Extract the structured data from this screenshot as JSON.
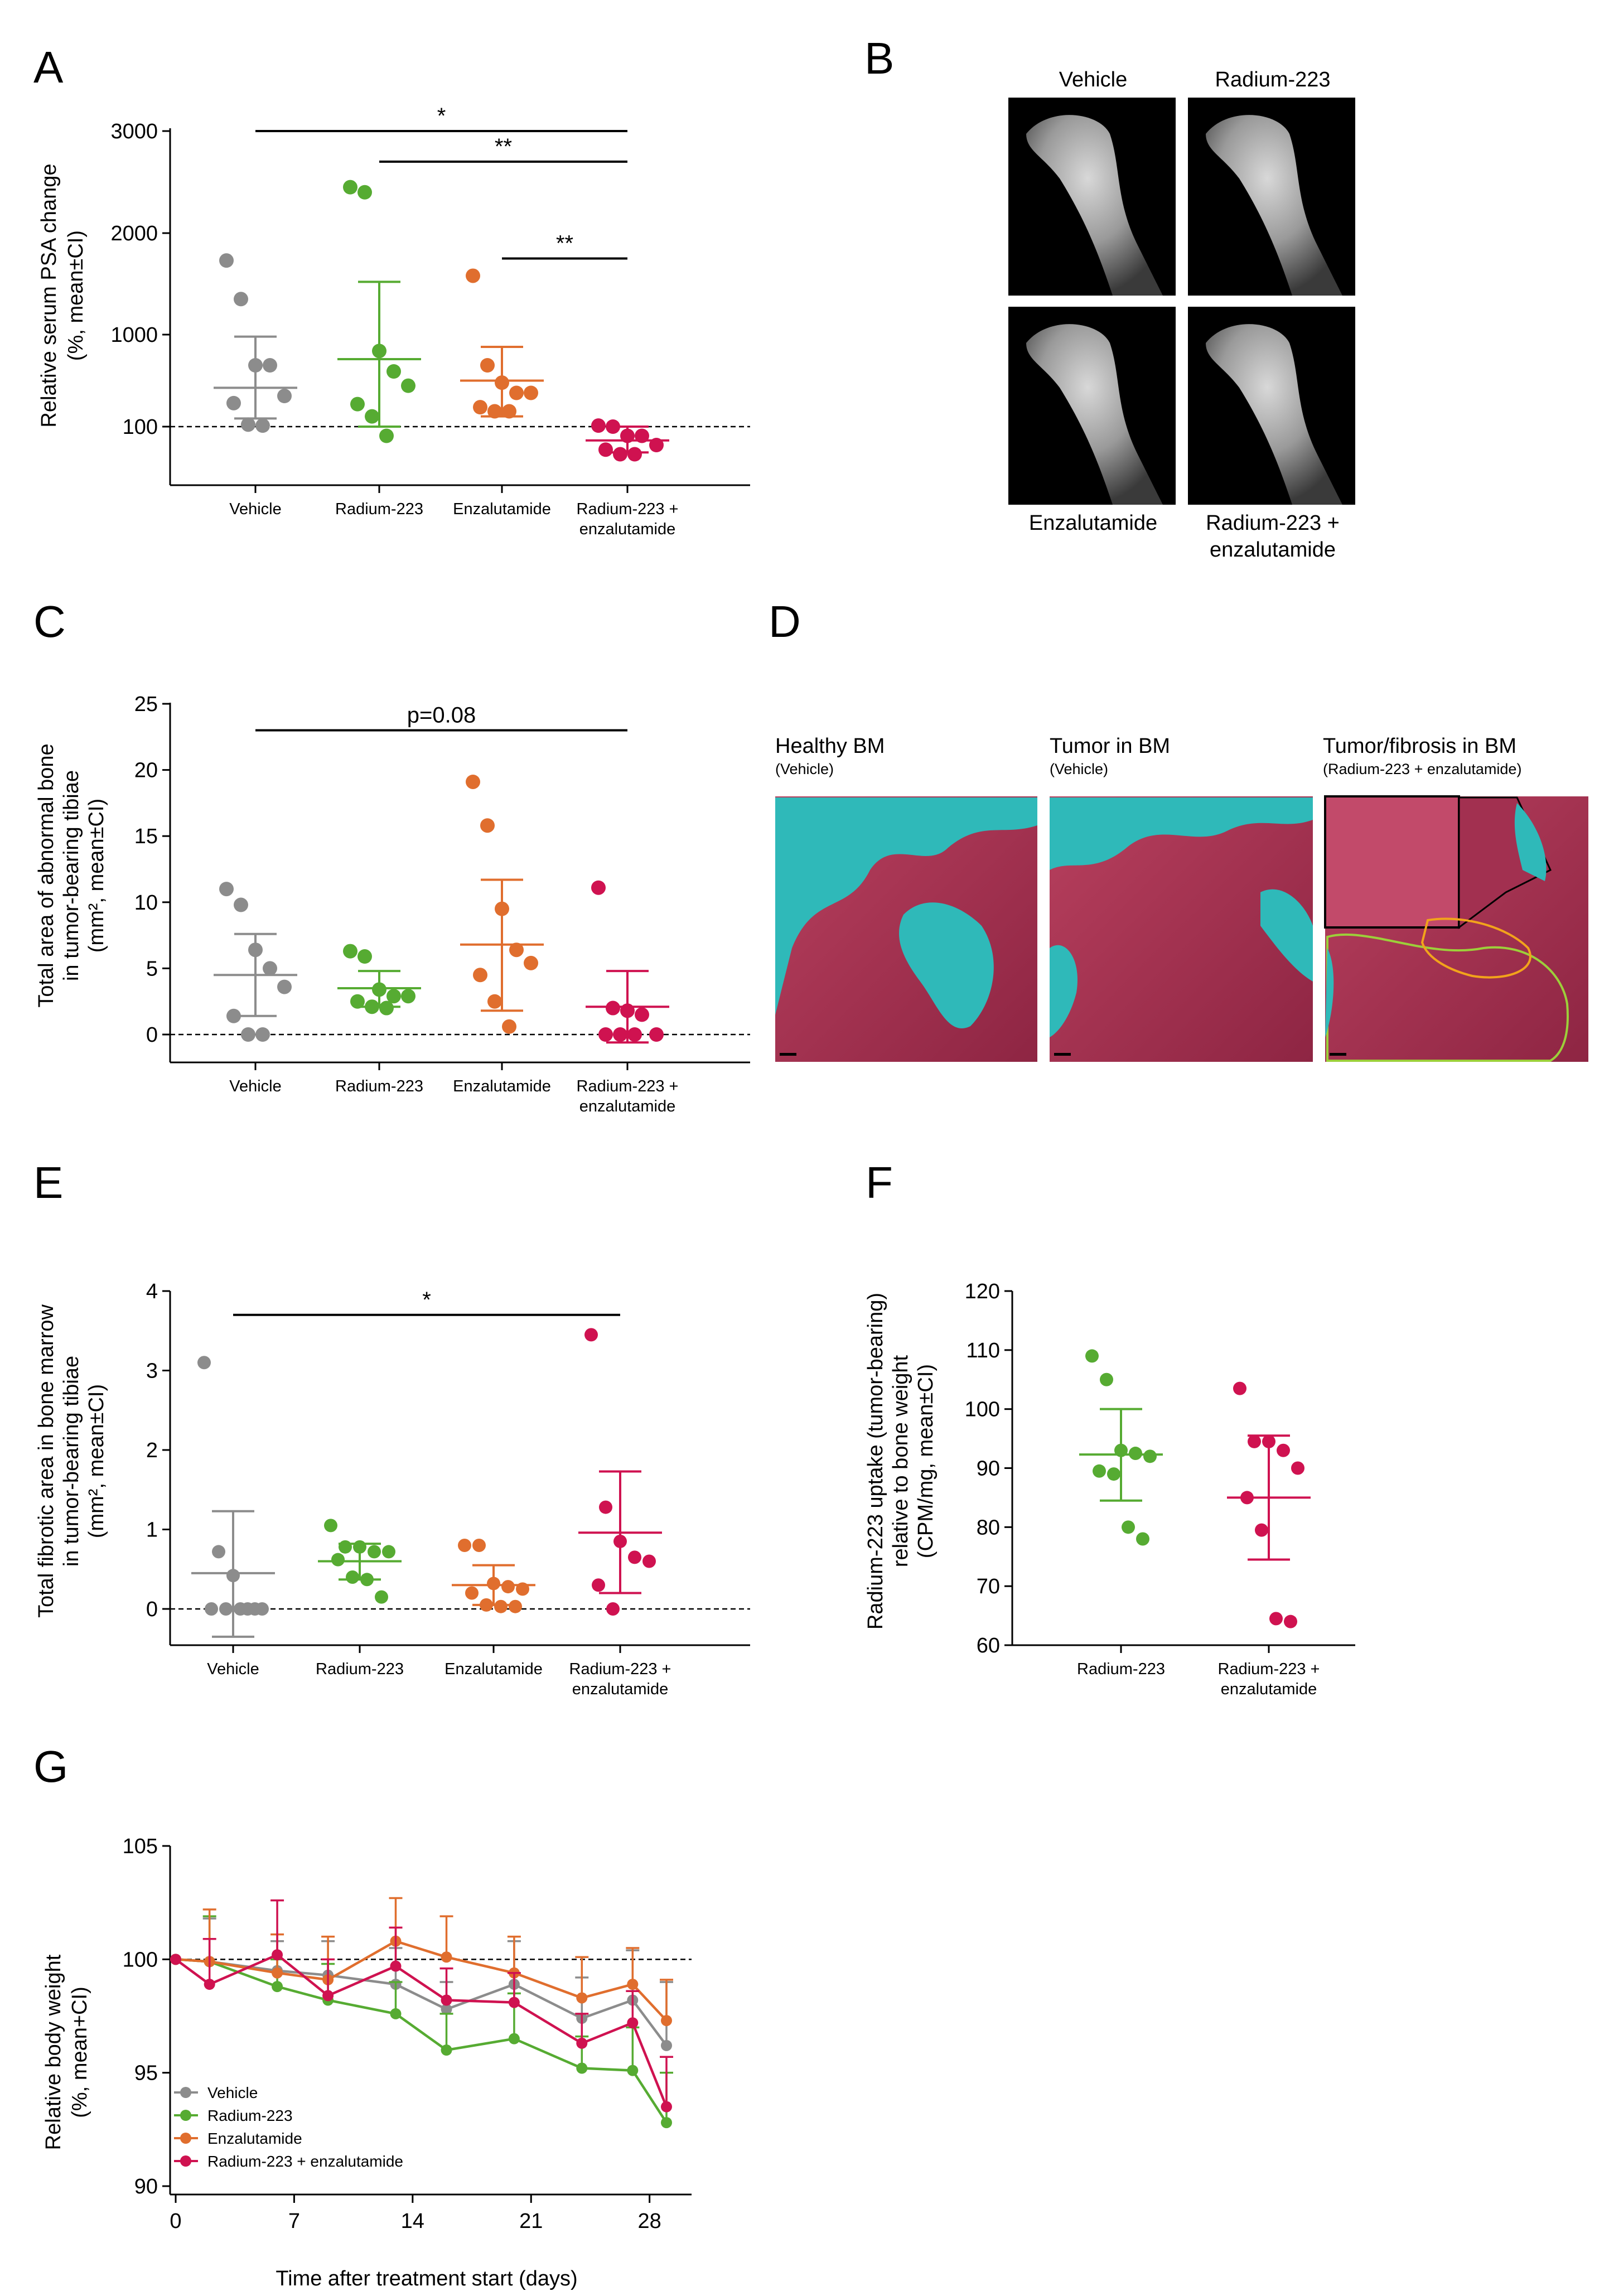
{
  "colors": {
    "Vehicle": "#8c8c8c",
    "Radium-223": "#56ab32",
    "Enzalutamide": "#e06e2e",
    "Radium-223 + enzalutamide": "#cf1250"
  },
  "panels": {
    "A": {
      "letter": "A",
      "ylabel": "Relative serum PSA change",
      "ylabel2": "(%, mean±CI)",
      "yticks": [
        "100",
        "1000",
        "2000",
        "3000"
      ],
      "categories": [
        [
          "Vehicle"
        ],
        [
          "Radium-223"
        ],
        [
          "Enzalutamide"
        ],
        [
          "Radium-223 +",
          "enzalutamide"
        ]
      ],
      "sig": [
        {
          "label": "*",
          "from": 0,
          "to": 3,
          "y": 3000
        },
        {
          "label": "**",
          "from": 1,
          "to": 3,
          "y": 2700
        },
        {
          "label": "**",
          "from": 2,
          "to": 3,
          "y": 1750
        }
      ]
    },
    "B": {
      "letter": "B",
      "labels": {
        "top_left": "Vehicle",
        "top_right": "Radium-223",
        "bottom_left": "Enzalutamide",
        "bottom_right": "Radium-223 +",
        "bottom_right2": "enzalutamide"
      }
    },
    "C": {
      "letter": "C",
      "ylabel": "Total area of abnormal bone",
      "ylabel2": "in tumor-bearing tibiae",
      "ylabel3": "(mm², mean±CI)",
      "yticks": [
        "0",
        "5",
        "10",
        "15",
        "20",
        "25"
      ],
      "categories": [
        [
          "Vehicle"
        ],
        [
          "Radium-223"
        ],
        [
          "Enzalutamide"
        ],
        [
          "Radium-223 +",
          "enzalutamide"
        ]
      ],
      "sig": [
        {
          "label": "p=0.08",
          "from": 0,
          "to": 3,
          "y": 23
        }
      ]
    },
    "D": {
      "letter": "D",
      "panels": [
        {
          "title": "Healthy BM",
          "subtitle": "(Vehicle)"
        },
        {
          "title": "Tumor in BM",
          "subtitle": "(Vehicle)"
        },
        {
          "title": "Tumor/fibrosis in BM",
          "subtitle": "(Radium-223 + enzalutamide)"
        }
      ]
    },
    "E": {
      "letter": "E",
      "ylabel": "Total fibrotic area in bone marrow",
      "ylabel2": "in tumor-bearing tibiae",
      "ylabel3": "(mm², mean±CI)",
      "yticks": [
        "0",
        "1",
        "2",
        "3",
        "4"
      ],
      "categories": [
        [
          "Vehicle"
        ],
        [
          "Radium-223"
        ],
        [
          "Enzalutamide"
        ],
        [
          "Radium-223 +",
          "enzalutamide"
        ]
      ],
      "sig": [
        {
          "label": "*",
          "from": 0,
          "to": 3,
          "y": 3.7
        }
      ]
    },
    "F": {
      "letter": "F",
      "ylabel": "Radium-223 uptake (tumor-bearing)",
      "ylabel2": "relative to bone weight",
      "ylabel3": "(CPM/mg, mean±CI)",
      "yticks": [
        "60",
        "70",
        "80",
        "90",
        "100",
        "110",
        "120"
      ],
      "categories": [
        [
          "Radium-223"
        ],
        [
          "Radium-223 +",
          "enzalutamide"
        ]
      ]
    },
    "G": {
      "letter": "G",
      "ylabel": "Relative body weight",
      "ylabel2": "(%, mean+CI)",
      "xlabel": "Time after treatment start (days)",
      "yticks": [
        "90",
        "95",
        "100",
        "105"
      ],
      "xticks": [
        "0",
        "7",
        "14",
        "21",
        "28"
      ],
      "legend": [
        "Vehicle",
        "Radium-223",
        "Enzalutamide",
        "Radium-223 + enzalutamide"
      ]
    }
  },
  "chart_data": [
    {
      "panel": "A",
      "type": "scatter",
      "yscale": "custom (100 → 1000 → 3000)",
      "ylabel": "Relative serum PSA change (%, mean±CI)",
      "categories": [
        "Vehicle",
        "Radium-223",
        "Enzalutamide",
        "Radium-223 + enzalutamide"
      ],
      "series": [
        {
          "name": "Vehicle",
          "points": [
            1730,
            1350,
            700,
            700,
            400,
            330,
            120,
            110
          ],
          "mean": 480,
          "ci": [
            180,
            980
          ],
          "color": "#8c8c8c"
        },
        {
          "name": "Radium-223",
          "points": [
            2450,
            2400,
            840,
            640,
            500,
            320,
            200,
            90
          ],
          "mean": 760,
          "ci": [
            100,
            1520
          ],
          "color": "#56ab32"
        },
        {
          "name": "Enzalutamide",
          "points": [
            1580,
            700,
            530,
            430,
            430,
            290,
            250,
            250
          ],
          "mean": 550,
          "ci": [
            200,
            880
          ],
          "color": "#e06e2e"
        },
        {
          "name": "Radium-223 + enzalutamide",
          "points": [
            110,
            100,
            90,
            90,
            80,
            75,
            70,
            70
          ],
          "mean": 85,
          "ci": [
            72,
            100
          ],
          "color": "#cf1250"
        }
      ],
      "reference_line": 100,
      "annotations": [
        "*",
        "**",
        "**"
      ]
    },
    {
      "panel": "C",
      "type": "scatter",
      "ylim": [
        -2,
        25
      ],
      "ylabel": "Total area of abnormal bone in tumor-bearing tibiae (mm², mean±CI)",
      "categories": [
        "Vehicle",
        "Radium-223",
        "Enzalutamide",
        "Radium-223 + enzalutamide"
      ],
      "series": [
        {
          "name": "Vehicle",
          "points": [
            11.0,
            9.8,
            6.4,
            5.0,
            3.6,
            1.4,
            0.0,
            0.0
          ],
          "mean": 4.5,
          "ci": [
            1.4,
            7.6
          ],
          "color": "#8c8c8c"
        },
        {
          "name": "Radium-223",
          "points": [
            6.3,
            5.9,
            3.4,
            2.9,
            2.9,
            2.5,
            2.1,
            2.0
          ],
          "mean": 3.5,
          "ci": [
            2.1,
            4.8
          ],
          "color": "#56ab32"
        },
        {
          "name": "Enzalutamide",
          "points": [
            19.1,
            15.8,
            9.5,
            6.4,
            5.4,
            4.5,
            2.5,
            0.6
          ],
          "mean": 6.8,
          "ci": [
            1.8,
            11.7
          ],
          "color": "#e06e2e"
        },
        {
          "name": "Radium-223 + enzalutamide",
          "points": [
            11.1,
            2.0,
            1.8,
            1.5,
            0.0,
            0.0,
            0.0,
            0.0
          ],
          "mean": 2.1,
          "ci": [
            -0.6,
            4.8
          ],
          "color": "#cf1250"
        }
      ],
      "reference_line": 0,
      "annotations": [
        "p=0.08"
      ]
    },
    {
      "panel": "E",
      "type": "scatter",
      "ylim": [
        -0.6,
        4
      ],
      "ylabel": "Total fibrotic area in bone marrow in tumor-bearing tibiae (mm², mean±CI)",
      "categories": [
        "Vehicle",
        "Radium-223",
        "Enzalutamide",
        "Radium-223 + enzalutamide"
      ],
      "series": [
        {
          "name": "Vehicle",
          "points": [
            3.1,
            0.72,
            0.42,
            0.0,
            0.0,
            0.0,
            0.0,
            0.0,
            0.0
          ],
          "mean": 0.45,
          "ci": [
            -0.35,
            1.23
          ],
          "color": "#8c8c8c"
        },
        {
          "name": "Radium-223",
          "points": [
            1.05,
            0.78,
            0.78,
            0.72,
            0.72,
            0.62,
            0.4,
            0.37,
            0.15
          ],
          "mean": 0.6,
          "ci": [
            0.37,
            0.82
          ],
          "color": "#56ab32"
        },
        {
          "name": "Enzalutamide",
          "points": [
            0.8,
            0.8,
            0.32,
            0.28,
            0.25,
            0.2,
            0.05,
            0.03,
            0.03
          ],
          "mean": 0.3,
          "ci": [
            0.05,
            0.55
          ],
          "color": "#e06e2e"
        },
        {
          "name": "Radium-223 + enzalutamide",
          "points": [
            3.45,
            1.28,
            0.85,
            0.65,
            0.6,
            0.3,
            0.0
          ],
          "mean": 0.96,
          "ci": [
            0.2,
            1.73
          ],
          "color": "#cf1250"
        }
      ],
      "reference_line": 0,
      "annotations": [
        "*"
      ]
    },
    {
      "panel": "F",
      "type": "scatter",
      "ylim": [
        60,
        120
      ],
      "ylabel": "Radium-223 uptake (tumor-bearing) relative to bone weight (CPM/mg, mean±CI)",
      "categories": [
        "Radium-223",
        "Radium-223 + enzalutamide"
      ],
      "series": [
        {
          "name": "Radium-223",
          "points": [
            109,
            105,
            93,
            92.5,
            92,
            89.5,
            89,
            80,
            78
          ],
          "mean": 92.3,
          "ci": [
            84.5,
            100
          ],
          "color": "#56ab32"
        },
        {
          "name": "Radium-223 + enzalutamide",
          "points": [
            103.5,
            94.5,
            94.5,
            93,
            90,
            85,
            79.5,
            64.5,
            64
          ],
          "mean": 85,
          "ci": [
            74.5,
            95.5
          ],
          "color": "#cf1250"
        }
      ]
    },
    {
      "panel": "G",
      "type": "line",
      "xlim": [
        -1,
        30
      ],
      "ylim": [
        90,
        105
      ],
      "xlabel": "Time after treatment start (days)",
      "ylabel": "Relative body weight (%, mean+CI)",
      "reference_line": 100,
      "series": [
        {
          "name": "Vehicle",
          "color": "#8c8c8c",
          "x": [
            0,
            2,
            6,
            9,
            13,
            16,
            20,
            24,
            27,
            29
          ],
          "y": [
            100,
            99.9,
            99.5,
            99.3,
            98.9,
            97.8,
            98.9,
            97.4,
            98.2,
            96.2
          ],
          "ci_upper": [
            100,
            101.8,
            100.8,
            100.8,
            100.5,
            99.0,
            100.8,
            99.2,
            100.4,
            99.0
          ]
        },
        {
          "name": "Radium-223",
          "color": "#56ab32",
          "x": [
            0,
            2,
            6,
            9,
            13,
            16,
            20,
            24,
            27,
            29
          ],
          "y": [
            100,
            99.9,
            98.8,
            98.2,
            97.6,
            96.0,
            96.5,
            95.2,
            95.1,
            92.8
          ],
          "ci_upper": [
            100,
            101.9,
            100.0,
            99.8,
            99.0,
            97.6,
            98.5,
            96.6,
            97.0,
            95.0
          ]
        },
        {
          "name": "Enzalutamide",
          "color": "#e06e2e",
          "x": [
            0,
            2,
            6,
            9,
            13,
            16,
            20,
            24,
            27,
            29
          ],
          "y": [
            100,
            99.9,
            99.4,
            99.1,
            100.8,
            100.1,
            99.4,
            98.3,
            98.9,
            97.3
          ],
          "ci_upper": [
            100,
            102.2,
            101.1,
            101.0,
            102.7,
            101.9,
            101.0,
            100.1,
            100.5,
            99.1
          ]
        },
        {
          "name": "Radium-223 + enzalutamide",
          "color": "#cf1250",
          "x": [
            0,
            2,
            6,
            9,
            13,
            16,
            20,
            24,
            27,
            29
          ],
          "y": [
            100,
            98.9,
            100.2,
            98.4,
            99.7,
            98.2,
            98.1,
            96.3,
            97.2,
            93.5
          ],
          "ci_upper": [
            100,
            100.9,
            102.6,
            100.0,
            101.4,
            99.6,
            99.4,
            97.6,
            98.6,
            95.7
          ]
        }
      ]
    }
  ]
}
